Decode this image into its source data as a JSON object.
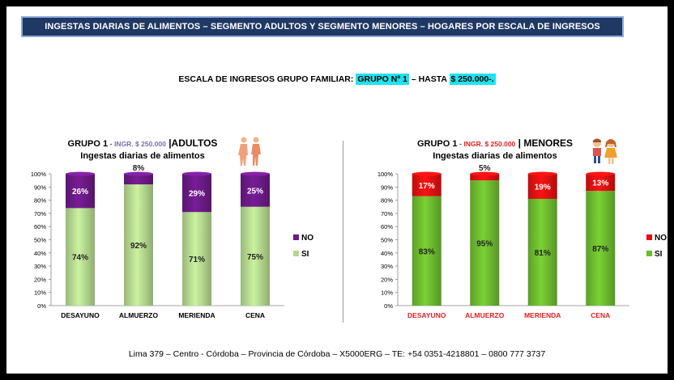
{
  "banner_title": "INGESTAS DIARIAS DE ALIMENTOS – SEGMENTO ADULTOS Y SEGMENTO MENORES – HOGARES  POR ESCALA DE INGRESOS",
  "subtitle": {
    "prefix": "ESCALA DE INGRESOS GRUPO FAMILIAR: ",
    "group": "GRUPO Nº  1",
    "middle": " – HASTA ",
    "amount": "$ 250.000-."
  },
  "footer": "Lima 379 – Centro - Córdoba – Provincia de Córdoba – X5000ERG –  TE: +54 0351-4218801 – 0800 777 3737",
  "chart_data": [
    {
      "type": "bar",
      "stacked": true,
      "title_prefix": "GRUPO  1",
      "title_income": "INGR. $ 250.000",
      "title_segment": "|ADULTOS",
      "subtitle": "Ingestas diarias de alimentos",
      "categories": [
        "DESAYUNO",
        "ALMUERZO",
        "MERIENDA",
        "CENA"
      ],
      "category_color": "#000000",
      "series": [
        {
          "name": "SI",
          "values": [
            74,
            92,
            71,
            75
          ],
          "labels": [
            "74%",
            "92%",
            "71%",
            "75%"
          ],
          "color": "#b5d88f"
        },
        {
          "name": "NO",
          "values": [
            26,
            8,
            29,
            25
          ],
          "labels": [
            "26%",
            "8%",
            "29%",
            "25%"
          ],
          "color": "#6b1a86"
        }
      ],
      "yticks": [
        "0%",
        "10%",
        "20%",
        "30%",
        "40%",
        "50%",
        "60%",
        "70%",
        "80%",
        "90%",
        "100%"
      ],
      "ylim": [
        0,
        100
      ],
      "legend": "right"
    },
    {
      "type": "bar",
      "stacked": true,
      "title_prefix": "GRUPO 1",
      "title_income": "INGR. $ 250.000",
      "title_segment": "| MENORES",
      "subtitle": "Ingestas diarias de alimentos",
      "categories": [
        "DESAYUNO",
        "ALMUERZO",
        "MERIENDA",
        "CENA"
      ],
      "category_color": "#e02020",
      "series": [
        {
          "name": "SI",
          "values": [
            83,
            95,
            81,
            87
          ],
          "labels": [
            "83%",
            "95%",
            "81%",
            "87%"
          ],
          "color": "#6dbb2e"
        },
        {
          "name": "NO",
          "values": [
            17,
            5,
            19,
            13
          ],
          "labels": [
            "17%",
            "5%",
            "19%",
            "13%"
          ],
          "color": "#e01010"
        }
      ],
      "yticks": [
        "0%",
        "10%",
        "20%",
        "30%",
        "40%",
        "50%",
        "60%",
        "70%",
        "80%",
        "90%",
        "100%"
      ],
      "ylim": [
        0,
        100
      ],
      "legend": "right"
    }
  ],
  "icons": [
    "adults-figures-icon",
    "children-figures-icon"
  ]
}
